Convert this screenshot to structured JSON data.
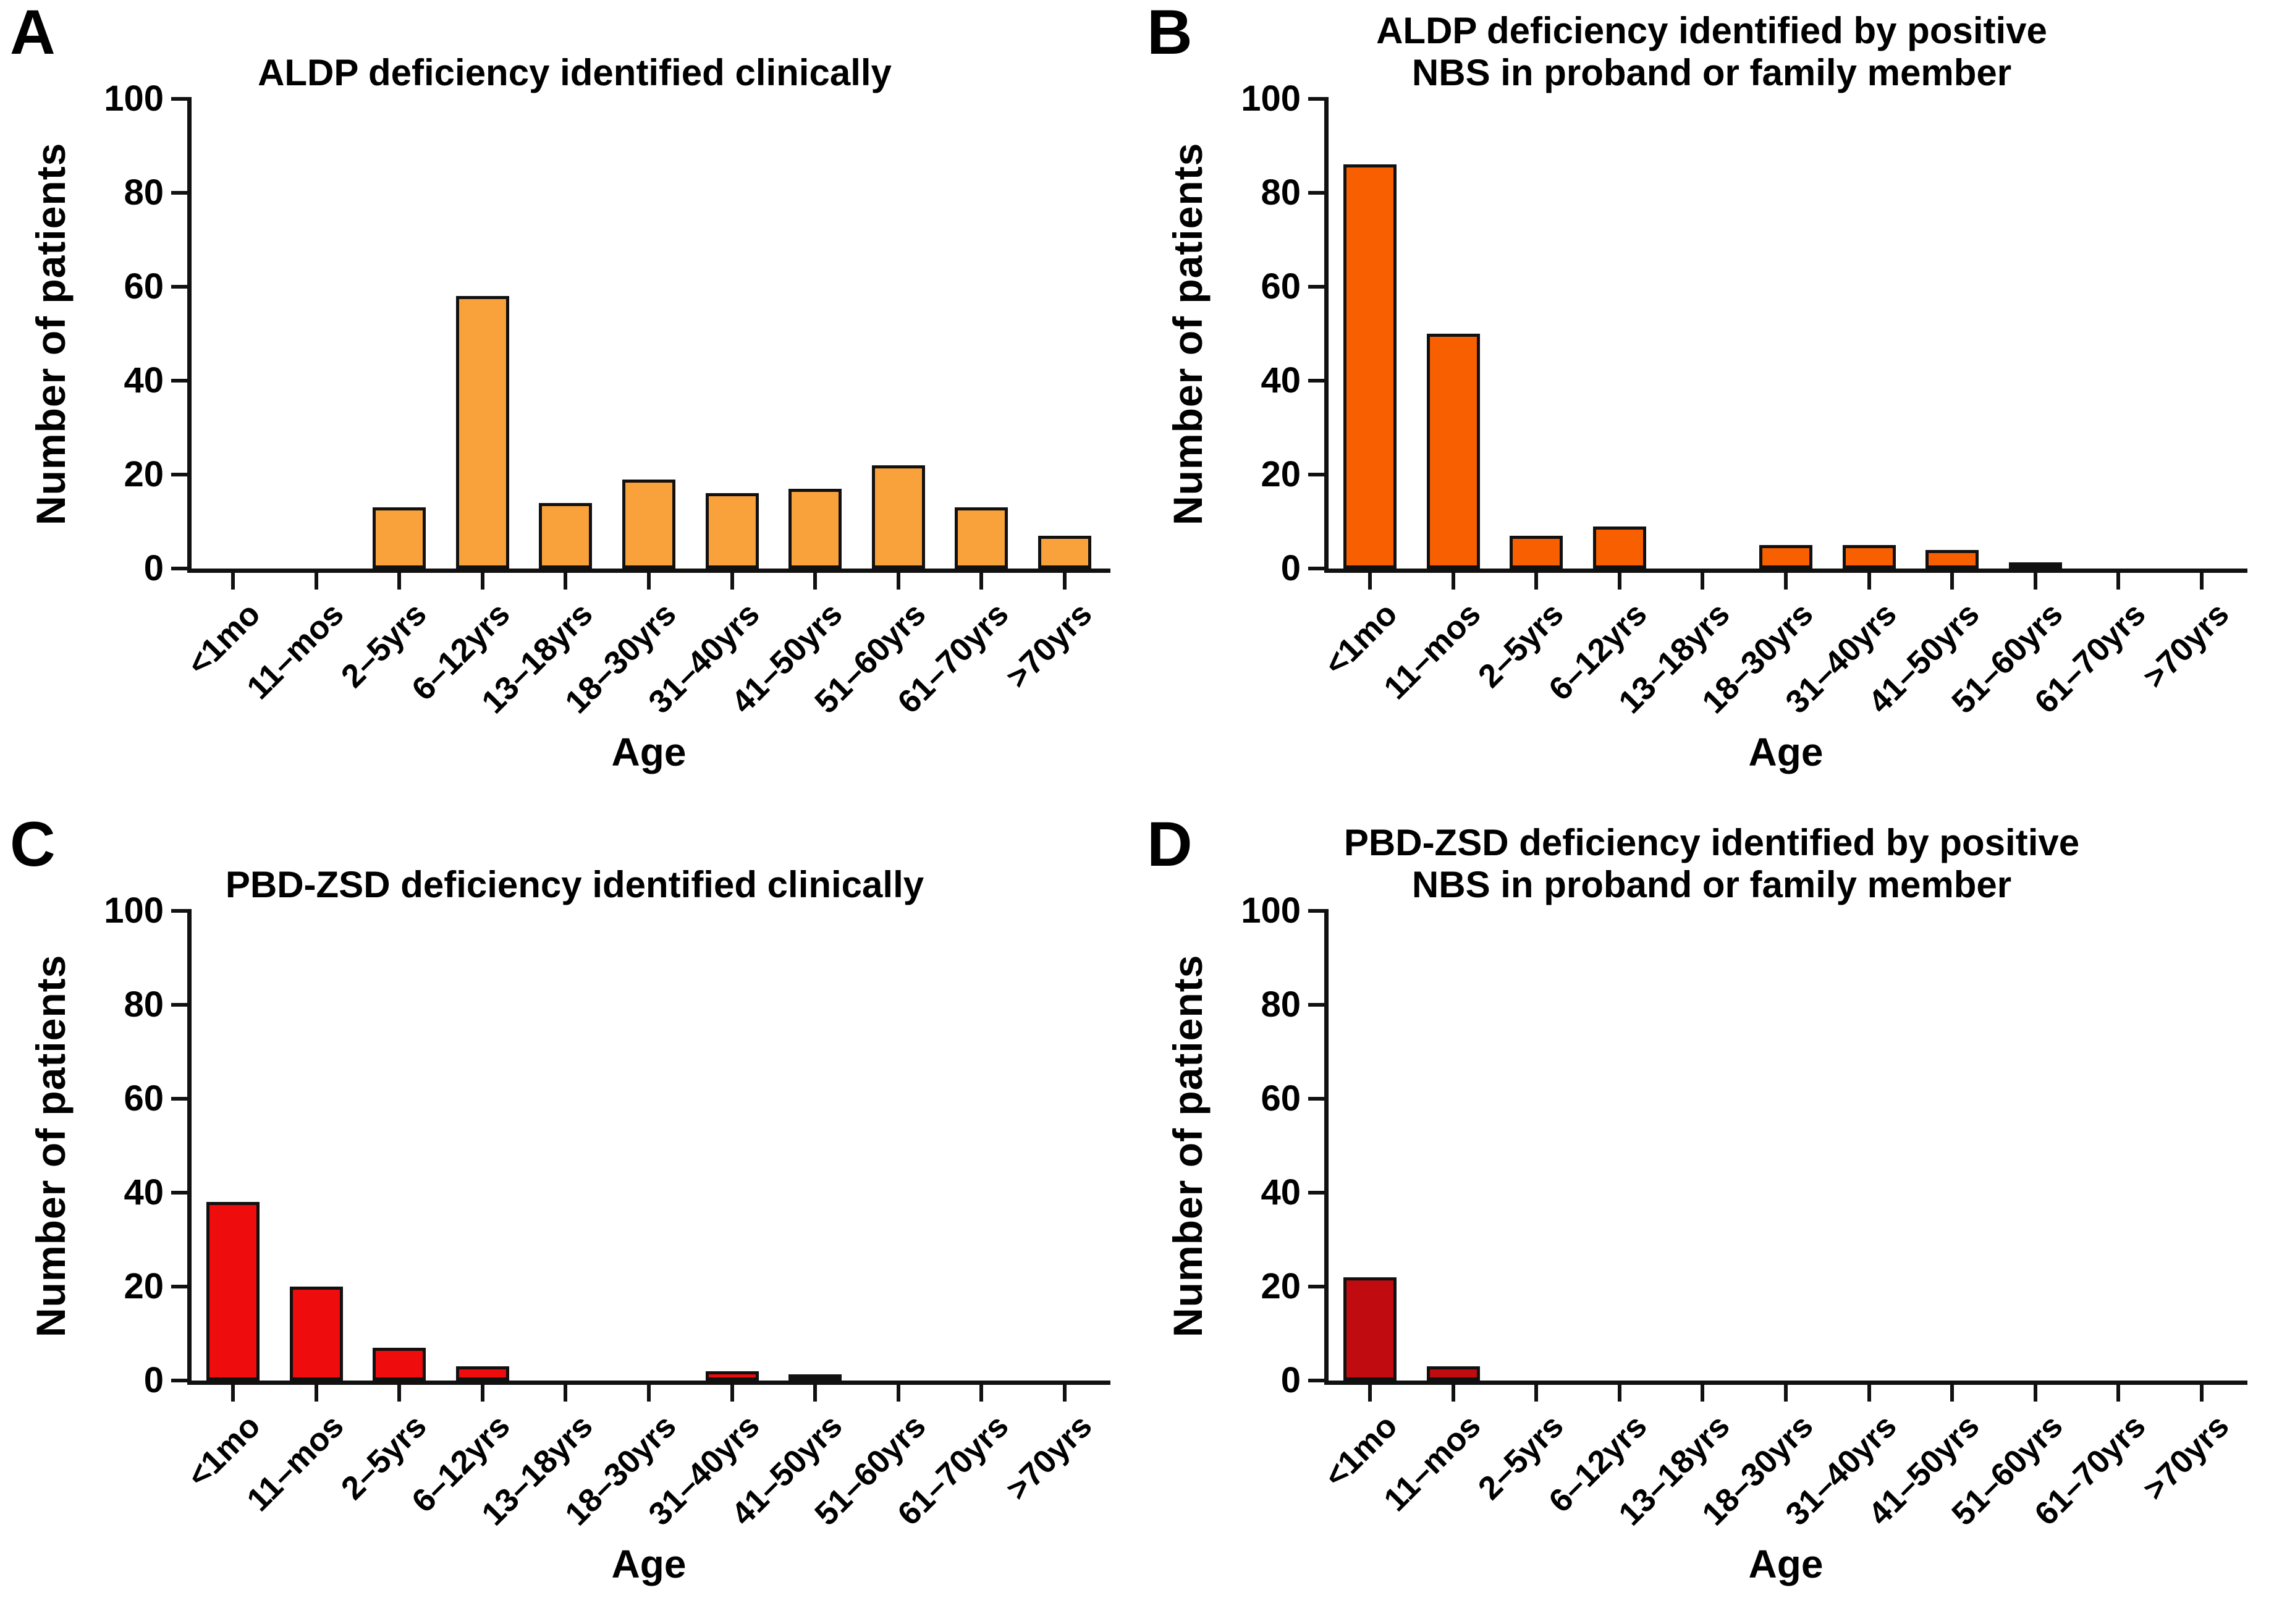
{
  "colors": {
    "axis": "#111111",
    "text": "#000000",
    "background": "#FFFFFF",
    "panel_a_bar": "#F9A23B",
    "panel_b_bar": "#F85F00",
    "panel_c_bar": "#EE0C0C",
    "panel_d_bar": "#C00C10"
  },
  "chart_data": [
    {
      "panel_label": "A",
      "type": "bar",
      "title": "ALDP deficiency identified clinically",
      "xlabel": "Age",
      "ylabel": "Number of patients",
      "ylim": [
        0,
        100
      ],
      "yticks": [
        0,
        20,
        40,
        60,
        80,
        100
      ],
      "grid": false,
      "legend": "none",
      "categories": [
        "<1mo",
        "11–mos",
        "2–5yrs",
        "6–12yrs",
        "13–18yrs",
        "18–30yrs",
        "31–40yrs",
        "41–50yrs",
        "51–60yrs",
        "61–70yrs",
        ">70yrs"
      ],
      "values": [
        0,
        0,
        13,
        58,
        14,
        19,
        16,
        17,
        22,
        13,
        7
      ],
      "bar_color": "#F9A23B"
    },
    {
      "panel_label": "B",
      "type": "bar",
      "title": "ALDP deficiency identified by positive\nNBS in proband or family member",
      "xlabel": "Age",
      "ylabel": "Number of patients",
      "ylim": [
        0,
        100
      ],
      "yticks": [
        0,
        20,
        40,
        60,
        80,
        100
      ],
      "grid": false,
      "legend": "none",
      "categories": [
        "<1mo",
        "11–mos",
        "2–5yrs",
        "6–12yrs",
        "13–18yrs",
        "18–30yrs",
        "31–40yrs",
        "41–50yrs",
        "51–60yrs",
        "61–70yrs",
        ">70yrs"
      ],
      "values": [
        86,
        50,
        7,
        9,
        0,
        5,
        5,
        4,
        1,
        0,
        0
      ],
      "bar_color": "#F85F00"
    },
    {
      "panel_label": "C",
      "type": "bar",
      "title": "PBD-ZSD deficiency identified clinically",
      "xlabel": "Age",
      "ylabel": "Number of patients",
      "ylim": [
        0,
        100
      ],
      "yticks": [
        0,
        20,
        40,
        60,
        80,
        100
      ],
      "grid": false,
      "legend": "none",
      "categories": [
        "<1mo",
        "11–mos",
        "2–5yrs",
        "6–12yrs",
        "13–18yrs",
        "18–30yrs",
        "31–40yrs",
        "41–50yrs",
        "51–60yrs",
        "61–70yrs",
        ">70yrs"
      ],
      "values": [
        38,
        20,
        7,
        3,
        0,
        0,
        2,
        1,
        0,
        0,
        0
      ],
      "bar_color": "#EE0C0C"
    },
    {
      "panel_label": "D",
      "type": "bar",
      "title": "PBD-ZSD deficiency identified by positive\nNBS in proband or family member",
      "xlabel": "Age",
      "ylabel": "Number of patients",
      "ylim": [
        0,
        100
      ],
      "yticks": [
        0,
        20,
        40,
        60,
        80,
        100
      ],
      "grid": false,
      "legend": "none",
      "categories": [
        "<1mo",
        "11–mos",
        "2–5yrs",
        "6–12yrs",
        "13–18yrs",
        "18–30yrs",
        "31–40yrs",
        "41–50yrs",
        "51–60yrs",
        "61–70yrs",
        ">70yrs"
      ],
      "values": [
        22,
        3,
        0,
        0,
        0,
        0,
        0,
        0,
        0,
        0,
        0
      ],
      "bar_color": "#C00C10"
    }
  ]
}
